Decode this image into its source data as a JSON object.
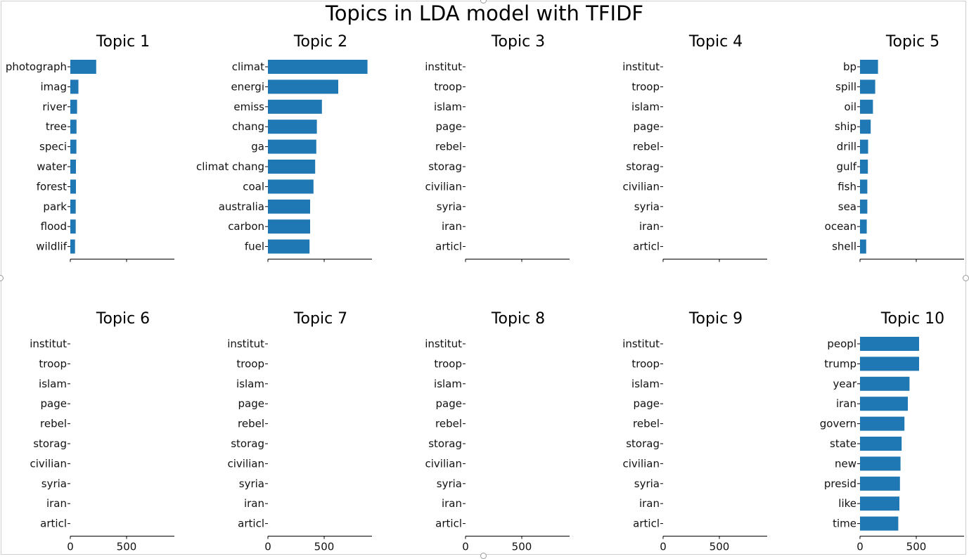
{
  "title": "Topics in LDA model with TFIDF",
  "colors": {
    "bar": "#1f77b4",
    "axis": "#000000",
    "text": "#000000",
    "background": "#ffffff"
  },
  "chart_data": {
    "type": "bar",
    "orientation": "horizontal",
    "layout": "2x5 grid of subplots",
    "sharex": true,
    "xlim": [
      0,
      920
    ],
    "xticks": [
      0,
      500
    ],
    "panels": [
      {
        "title": "Topic 1",
        "show_xticklabels": false,
        "categories": [
          "photograph",
          "imag",
          "river",
          "tree",
          "speci",
          "water",
          "forest",
          "park",
          "flood",
          "wildlif"
        ],
        "values": [
          230,
          72,
          60,
          55,
          54,
          50,
          50,
          48,
          48,
          42
        ]
      },
      {
        "title": "Topic 2",
        "show_xticklabels": false,
        "categories": [
          "climat",
          "energi",
          "emiss",
          "chang",
          "ga",
          "climat chang",
          "coal",
          "australia",
          "carbon",
          "fuel"
        ],
        "values": [
          885,
          625,
          480,
          435,
          430,
          420,
          405,
          375,
          375,
          370
        ]
      },
      {
        "title": "Topic 3",
        "show_xticklabels": false,
        "categories": [
          "institut",
          "troop",
          "islam",
          "page",
          "rebel",
          "storag",
          "civilian",
          "syria",
          "iran",
          "articl"
        ],
        "values": [
          0,
          0,
          0,
          0,
          0,
          0,
          0,
          0,
          0,
          0
        ]
      },
      {
        "title": "Topic 4",
        "show_xticklabels": false,
        "categories": [
          "institut",
          "troop",
          "islam",
          "page",
          "rebel",
          "storag",
          "civilian",
          "syria",
          "iran",
          "articl"
        ],
        "values": [
          0,
          0,
          0,
          0,
          0,
          0,
          0,
          0,
          0,
          0
        ]
      },
      {
        "title": "Topic 5",
        "show_xticklabels": false,
        "categories": [
          "bp",
          "spill",
          "oil",
          "ship",
          "drill",
          "gulf",
          "fish",
          "sea",
          "ocean",
          "shell"
        ],
        "values": [
          160,
          135,
          115,
          95,
          72,
          70,
          65,
          65,
          60,
          55
        ]
      },
      {
        "title": "Topic 6",
        "show_xticklabels": true,
        "categories": [
          "institut",
          "troop",
          "islam",
          "page",
          "rebel",
          "storag",
          "civilian",
          "syria",
          "iran",
          "articl"
        ],
        "values": [
          0,
          0,
          0,
          0,
          0,
          0,
          0,
          0,
          0,
          0
        ]
      },
      {
        "title": "Topic 7",
        "show_xticklabels": true,
        "categories": [
          "institut",
          "troop",
          "islam",
          "page",
          "rebel",
          "storag",
          "civilian",
          "syria",
          "iran",
          "articl"
        ],
        "values": [
          0,
          0,
          0,
          0,
          0,
          0,
          0,
          0,
          0,
          0
        ]
      },
      {
        "title": "Topic 8",
        "show_xticklabels": true,
        "categories": [
          "institut",
          "troop",
          "islam",
          "page",
          "rebel",
          "storag",
          "civilian",
          "syria",
          "iran",
          "articl"
        ],
        "values": [
          0,
          0,
          0,
          0,
          0,
          0,
          0,
          0,
          0,
          0
        ]
      },
      {
        "title": "Topic 9",
        "show_xticklabels": true,
        "categories": [
          "institut",
          "troop",
          "islam",
          "page",
          "rebel",
          "storag",
          "civilian",
          "syria",
          "iran",
          "articl"
        ],
        "values": [
          0,
          0,
          0,
          0,
          0,
          0,
          0,
          0,
          0,
          0
        ]
      },
      {
        "title": "Topic 10",
        "show_xticklabels": true,
        "categories": [
          "peopl",
          "trump",
          "year",
          "iran",
          "govern",
          "state",
          "new",
          "presid",
          "like",
          "time"
        ],
        "values": [
          525,
          525,
          440,
          425,
          395,
          370,
          360,
          355,
          350,
          340
        ]
      }
    ]
  }
}
